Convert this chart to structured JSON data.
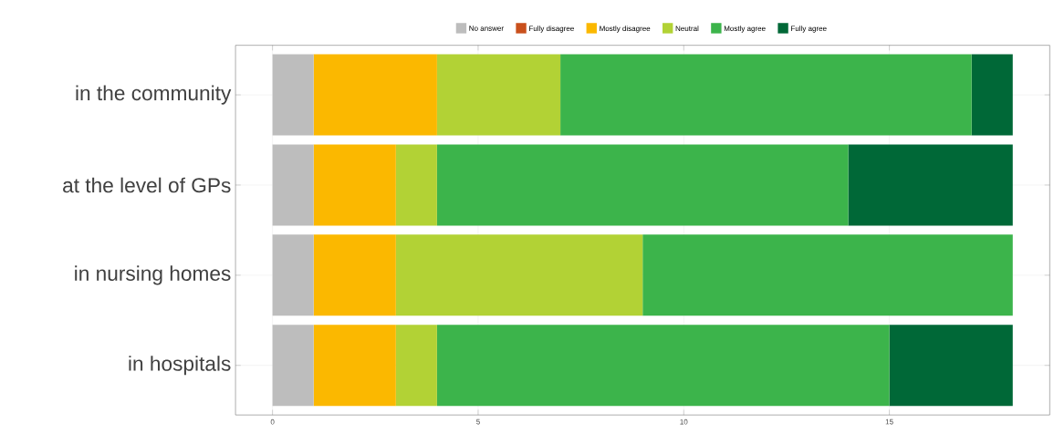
{
  "chart_data": {
    "type": "bar",
    "orientation": "horizontal",
    "stacked": true,
    "categories": [
      "in the community",
      "at the level of GPs",
      "in nursing homes",
      "in hospitals"
    ],
    "series": [
      {
        "name": "No answer",
        "color": "#bdbdbd",
        "values": [
          1,
          1,
          1,
          1
        ]
      },
      {
        "name": "Fully disagree",
        "color": "#c9501c",
        "values": [
          0,
          0,
          0,
          0
        ]
      },
      {
        "name": "Mostly disagree",
        "color": "#fbb800",
        "values": [
          3,
          2,
          2,
          2
        ]
      },
      {
        "name": "Neutral",
        "color": "#b2d235",
        "values": [
          3,
          1,
          6,
          1
        ]
      },
      {
        "name": "Mostly agree",
        "color": "#3cb44b",
        "values": [
          10,
          10,
          9,
          11
        ]
      },
      {
        "name": "Fully agree",
        "color": "#006837",
        "values": [
          1,
          4,
          0,
          3
        ]
      }
    ],
    "xlim": [
      -0.9,
      18.9
    ],
    "xticks": [
      0,
      5,
      10,
      15
    ],
    "grid": true,
    "legend": "top"
  }
}
